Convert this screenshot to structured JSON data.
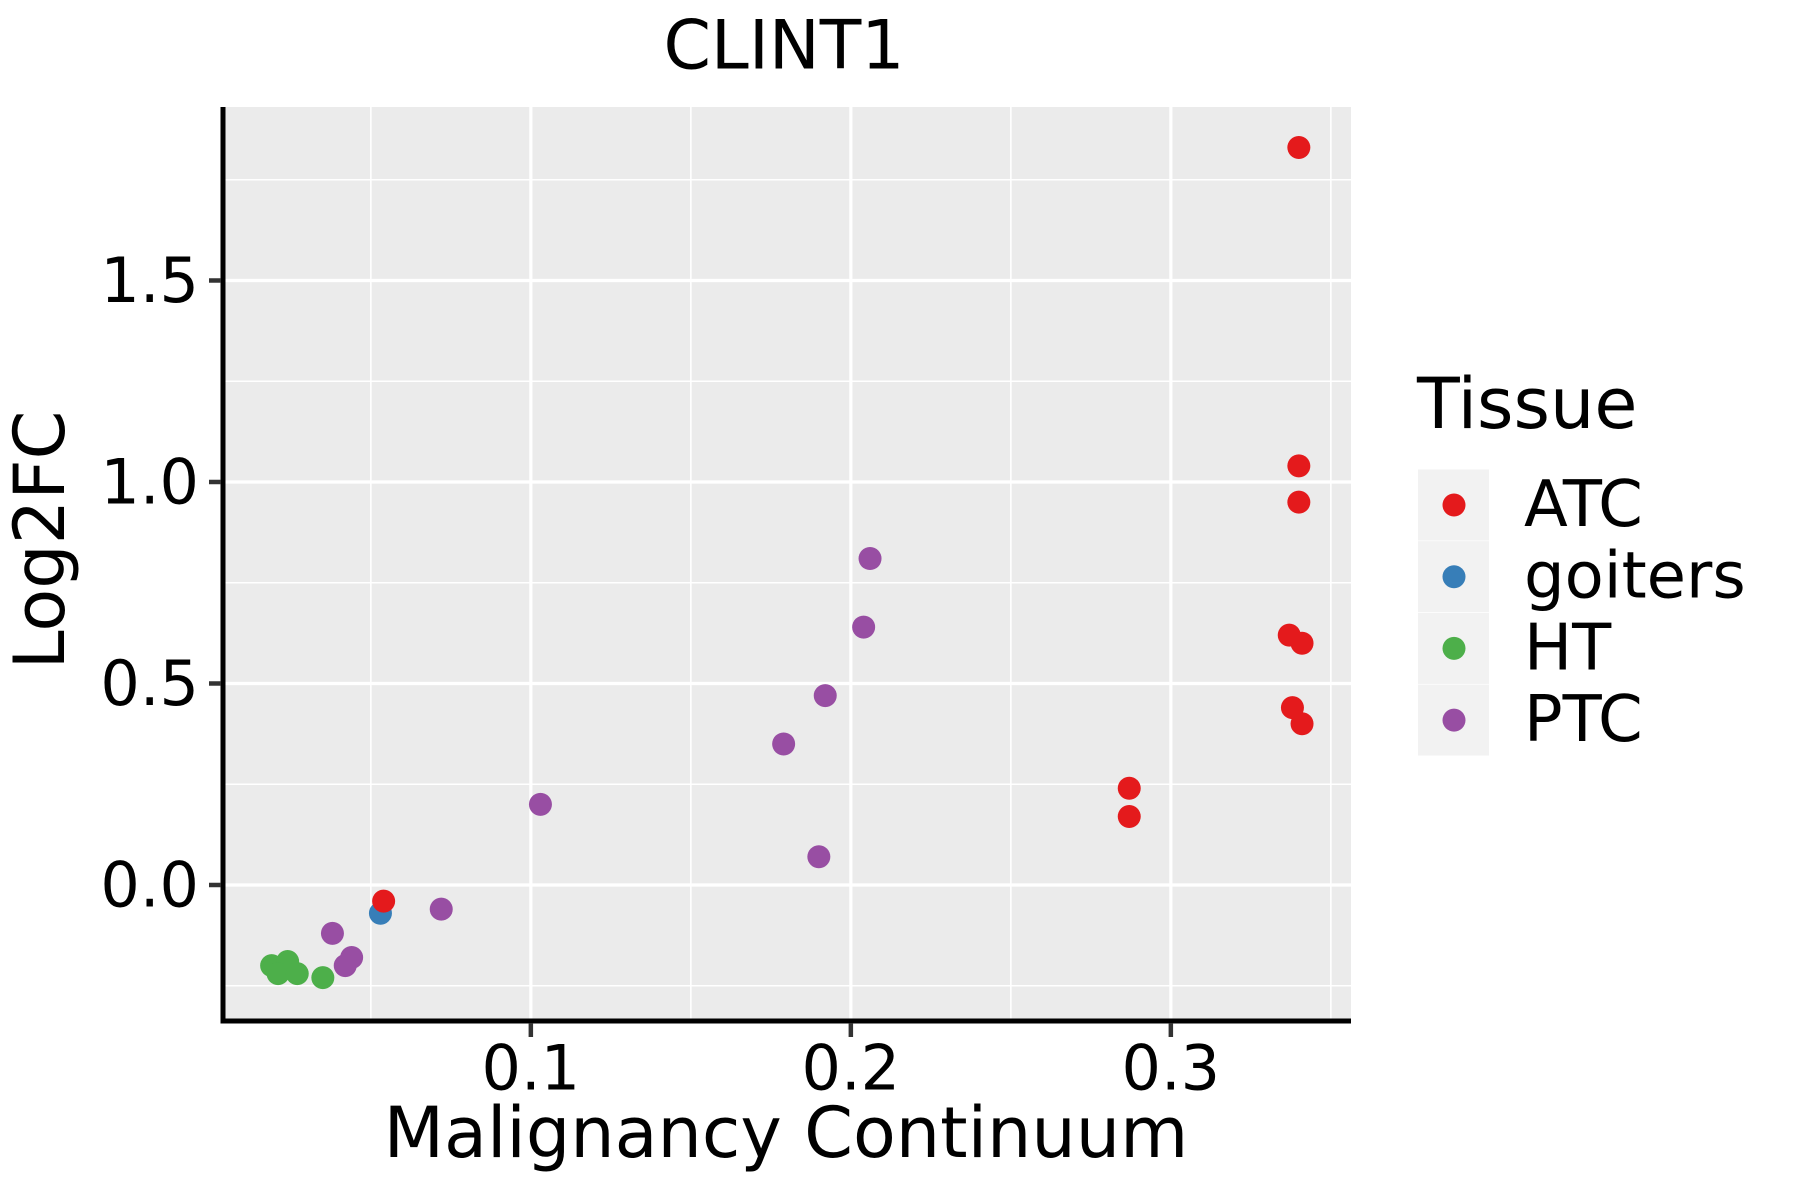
{
  "colors": {
    "panel_background": "#ebebeb",
    "gridline": "#ffffff",
    "legend_key_background": "#f2f2f2",
    "axis_spine": "#000000",
    "tick_mark": "#333333",
    "text": "#000000",
    "atc_red": "#e41a1c",
    "goiters_blue": "#377eb8",
    "ht_green": "#4daf4a",
    "ptc_purple": "#984ea3"
  },
  "chart_data": {
    "type": "scatter",
    "title": "CLINT1",
    "xlabel": "Malignancy Continuum",
    "ylabel": "Log2FC",
    "legend_title": "Tissue",
    "legend_position": "right",
    "grid": "white major and minor gridlines on gray panel",
    "xlim": [
      0.0038,
      0.3563
    ],
    "ylim": [
      -0.3375,
      1.9305
    ],
    "x_ticks": [
      0.1,
      0.2,
      0.3
    ],
    "x_tick_labels": [
      "0.1",
      "0.2",
      "0.3"
    ],
    "x_minor_ticks": [
      0.05,
      0.15,
      0.25,
      0.35
    ],
    "y_ticks": [
      0.0,
      0.5,
      1.0,
      1.5
    ],
    "y_tick_labels": [
      "0.0",
      "0.5",
      "1.0",
      "1.5"
    ],
    "y_minor_ticks": [
      -0.25,
      0.25,
      0.75,
      1.25,
      1.75
    ],
    "point_radius_px": 11.5,
    "series": [
      {
        "name": "goiters",
        "color": "#377eb8",
        "points": [
          [
            0.053,
            -0.07
          ]
        ]
      },
      {
        "name": "HT",
        "color": "#4daf4a",
        "points": [
          [
            0.019,
            -0.2
          ],
          [
            0.024,
            -0.19
          ],
          [
            0.021,
            -0.22
          ],
          [
            0.027,
            -0.22
          ],
          [
            0.035,
            -0.23
          ]
        ]
      },
      {
        "name": "PTC",
        "color": "#984ea3",
        "points": [
          [
            0.206,
            0.81
          ],
          [
            0.204,
            0.64
          ],
          [
            0.192,
            0.47
          ],
          [
            0.179,
            0.35
          ],
          [
            0.19,
            0.07
          ],
          [
            0.103,
            0.2
          ],
          [
            0.072,
            -0.06
          ],
          [
            0.038,
            -0.12
          ],
          [
            0.044,
            -0.18
          ],
          [
            0.042,
            -0.2
          ]
        ]
      },
      {
        "name": "ATC",
        "color": "#e41a1c",
        "points": [
          [
            0.34,
            1.83
          ],
          [
            0.34,
            1.04
          ],
          [
            0.34,
            0.95
          ],
          [
            0.337,
            0.62
          ],
          [
            0.341,
            0.6
          ],
          [
            0.338,
            0.44
          ],
          [
            0.341,
            0.4
          ],
          [
            0.287,
            0.24
          ],
          [
            0.287,
            0.17
          ],
          [
            0.054,
            -0.04
          ]
        ]
      }
    ],
    "legend_entries": [
      {
        "label": "ATC",
        "color": "#e41a1c"
      },
      {
        "label": "goiters",
        "color": "#377eb8"
      },
      {
        "label": "HT",
        "color": "#4daf4a"
      },
      {
        "label": "PTC",
        "color": "#984ea3"
      }
    ]
  }
}
